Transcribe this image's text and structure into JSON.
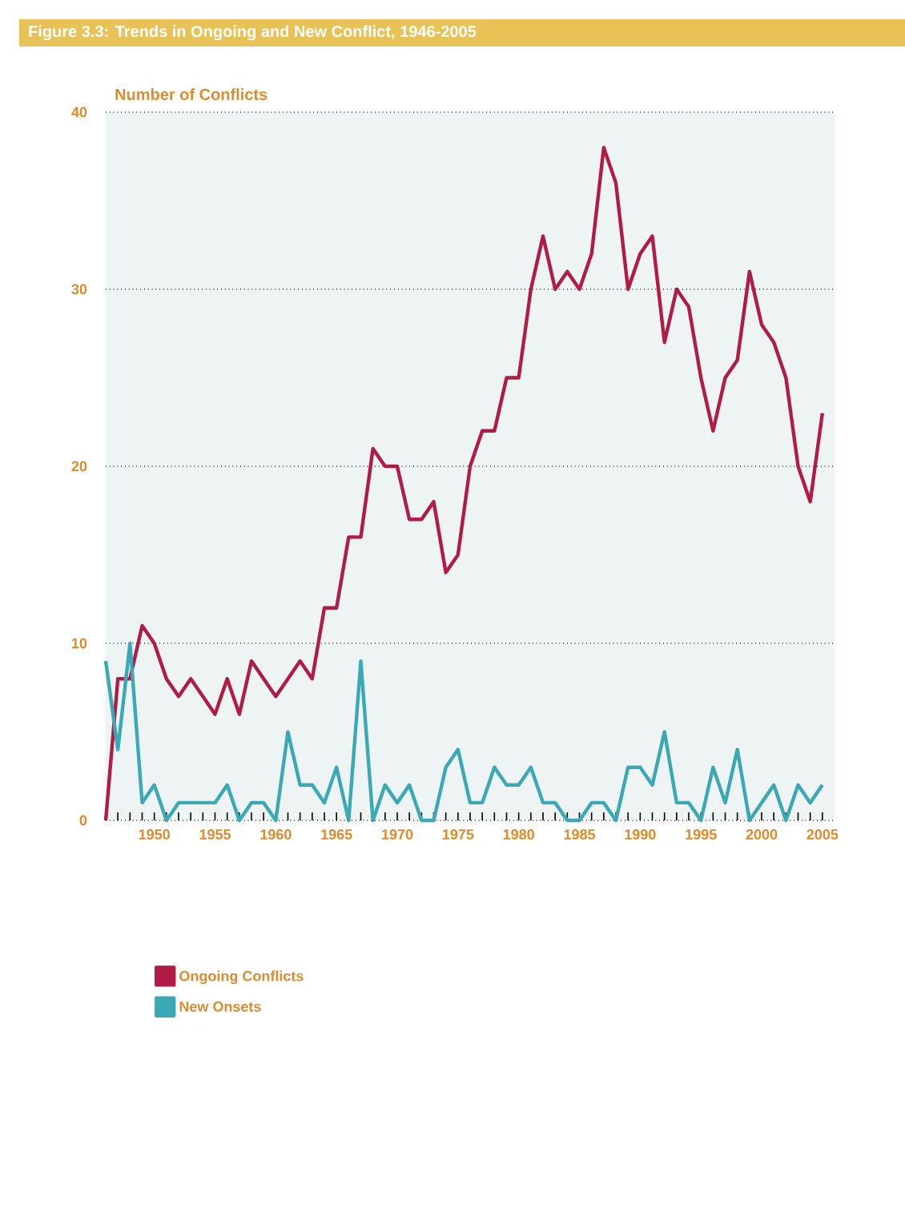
{
  "chart_data": {
    "type": "line",
    "title": "Figure 3.3: Trends in Ongoing and New Conflict, 1946-2005",
    "ylabel": "Number of Conflicts",
    "x": [
      1946,
      1947,
      1948,
      1949,
      1950,
      1951,
      1952,
      1953,
      1954,
      1955,
      1956,
      1957,
      1958,
      1959,
      1960,
      1961,
      1962,
      1963,
      1964,
      1965,
      1966,
      1967,
      1968,
      1969,
      1970,
      1971,
      1972,
      1973,
      1974,
      1975,
      1976,
      1977,
      1978,
      1979,
      1980,
      1981,
      1982,
      1983,
      1984,
      1985,
      1986,
      1987,
      1988,
      1989,
      1990,
      1991,
      1992,
      1993,
      1994,
      1995,
      1996,
      1997,
      1998,
      1999,
      2000,
      2001,
      2002,
      2003,
      2004,
      2005
    ],
    "series": [
      {
        "name": "Ongoing Conflicts",
        "color": "#b01c45",
        "values": [
          0,
          8,
          8,
          11,
          10,
          8,
          7,
          8,
          7,
          6,
          8,
          6,
          9,
          8,
          7,
          8,
          9,
          8,
          12,
          12,
          16,
          16,
          21,
          20,
          20,
          17,
          17,
          18,
          14,
          15,
          20,
          22,
          22,
          25,
          25,
          30,
          33,
          30,
          31,
          30,
          32,
          38,
          36,
          30,
          32,
          33,
          27,
          30,
          29,
          25,
          22,
          25,
          26,
          31,
          28,
          27,
          25,
          20,
          18,
          23
        ]
      },
      {
        "name": "New Onsets",
        "color": "#3aa8b5",
        "values": [
          9,
          4,
          10,
          1,
          2,
          0,
          1,
          1,
          1,
          1,
          2,
          0,
          1,
          1,
          0,
          5,
          2,
          2,
          1,
          3,
          0,
          9,
          0,
          2,
          1,
          2,
          0,
          0,
          3,
          4,
          1,
          1,
          3,
          2,
          2,
          3,
          1,
          1,
          0,
          0,
          1,
          1,
          0,
          3,
          3,
          2,
          5,
          1,
          1,
          0,
          3,
          1,
          4,
          0,
          1,
          2,
          0,
          2,
          1,
          2
        ]
      }
    ],
    "xlim": [
      1946,
      2006
    ],
    "ylim": [
      0,
      40
    ],
    "yticks": [
      0,
      10,
      20,
      30,
      40
    ],
    "xticks": [
      {
        "value": 1946,
        "label": null
      },
      {
        "value": 1947,
        "label": null
      },
      {
        "value": 1948,
        "label": null
      },
      {
        "value": 1949,
        "label": null
      },
      1950,
      {
        "value": 1951,
        "label": null
      },
      {
        "value": 1952,
        "label": null
      },
      {
        "value": 1953,
        "label": null
      },
      {
        "value": 1954,
        "label": null
      },
      1955,
      {
        "value": 1956,
        "label": null
      },
      {
        "value": 1957,
        "label": null
      },
      {
        "value": 1958,
        "label": null
      },
      {
        "value": 1959,
        "label": null
      },
      1960,
      {
        "value": 1961,
        "label": null
      },
      {
        "value": 1962,
        "label": null
      },
      {
        "value": 1963,
        "label": null
      },
      {
        "value": 1964,
        "label": null
      },
      1965,
      {
        "value": 1966,
        "label": null
      },
      {
        "value": 1967,
        "label": null
      },
      {
        "value": 1968,
        "label": null
      },
      {
        "value": 1969,
        "label": null
      },
      1970,
      {
        "value": 1971,
        "label": null
      },
      {
        "value": 1972,
        "label": null
      },
      {
        "value": 1973,
        "label": null
      },
      {
        "value": 1974,
        "label": null
      },
      1975,
      {
        "value": 1976,
        "label": null
      },
      {
        "value": 1977,
        "label": null
      },
      {
        "value": 1978,
        "label": null
      },
      {
        "value": 1979,
        "label": null
      },
      1980,
      {
        "value": 1981,
        "label": null
      },
      {
        "value": 1982,
        "label": null
      },
      {
        "value": 1983,
        "label": null
      },
      {
        "value": 1984,
        "label": null
      },
      1985,
      {
        "value": 1986,
        "label": null
      },
      {
        "value": 1987,
        "label": null
      },
      {
        "value": 1988,
        "label": null
      },
      {
        "value": 1989,
        "label": null
      },
      1990,
      {
        "value": 1991,
        "label": null
      },
      {
        "value": 1992,
        "label": null
      },
      {
        "value": 1993,
        "label": null
      },
      {
        "value": 1994,
        "label": null
      },
      1995,
      {
        "value": 1996,
        "label": null
      },
      {
        "value": 1997,
        "label": null
      },
      {
        "value": 1998,
        "label": null
      },
      {
        "value": 1999,
        "label": null
      },
      2000,
      {
        "value": 2001,
        "label": null
      },
      {
        "value": 2002,
        "label": null
      },
      {
        "value": 2003,
        "label": null
      },
      {
        "value": 2004,
        "label": null
      },
      2005
    ],
    "grid": "y",
    "legend": "bottom left"
  }
}
